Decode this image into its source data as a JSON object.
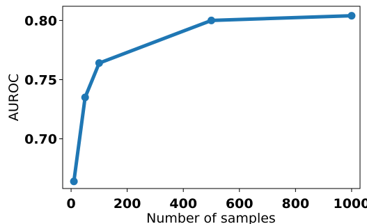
{
  "chart_data": {
    "type": "line",
    "title": "",
    "xlabel": "Number of samples",
    "ylabel": "AUROC",
    "xlim": [
      -30,
      1030
    ],
    "ylim": [
      0.658,
      0.812
    ],
    "x_ticks": [
      0,
      200,
      400,
      600,
      800,
      1000
    ],
    "x_tick_labels": [
      "0",
      "200",
      "400",
      "600",
      "800",
      "1000"
    ],
    "y_ticks": [
      0.7,
      0.75,
      0.8
    ],
    "y_tick_labels": [
      "0.70",
      "0.75",
      "0.80"
    ],
    "grid": false,
    "series": [
      {
        "color": "#1f77b4",
        "x": [
          10,
          50,
          100,
          500,
          1000
        ],
        "y": [
          0.664,
          0.735,
          0.764,
          0.8,
          0.804
        ]
      }
    ]
  }
}
